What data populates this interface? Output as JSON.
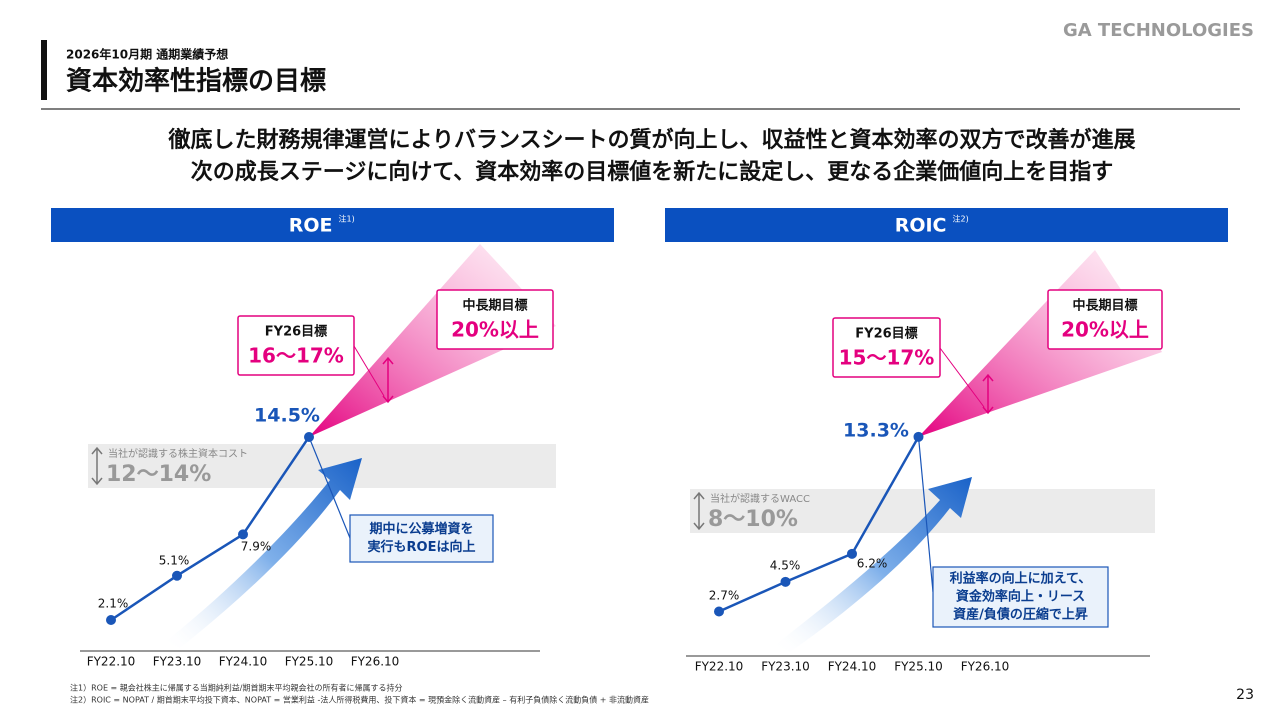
{
  "header": {
    "subtitle": "2026年10月期 通期業績予想",
    "title": "資本効率性指標の目標",
    "logo": "GA TECHNOLOGIES"
  },
  "headline": [
    "徹底した財務規律運営によりバランスシートの質が向上し、収益性と資本効率の双方で改善が進展",
    "次の成長ステージに向けて、資本効率の目標値を新たに設定し、更なる企業価値向上を目指す"
  ],
  "chart_data": [
    {
      "type": "line",
      "title": "ROE",
      "title_note": "注1)",
      "categories": [
        "FY22.10",
        "FY23.10",
        "FY24.10",
        "FY25.10",
        "FY26.10"
      ],
      "values": [
        2.1,
        5.1,
        7.9,
        14.5,
        null
      ],
      "value_labels": [
        "2.1%",
        "5.1%",
        "7.9%",
        "14.5%",
        null
      ],
      "color": "#1a56b8",
      "ylim": [
        0,
        25
      ],
      "annotations": {
        "fy26_label": "FY26目標",
        "fy26_value": "16〜17%",
        "mid_label": "中長期目標",
        "mid_value": "20%以上",
        "cost_label": "当社が認識する株主資本コスト",
        "cost_value": "12〜14%",
        "callout": [
          "期中に公募増資を",
          "実行もROEは向上"
        ]
      }
    },
    {
      "type": "line",
      "title": "ROIC",
      "title_note": "注2)",
      "categories": [
        "FY22.10",
        "FY23.10",
        "FY24.10",
        "FY25.10",
        "FY26.10"
      ],
      "values": [
        2.7,
        4.5,
        6.2,
        13.3,
        null
      ],
      "value_labels": [
        "2.7%",
        "4.5%",
        "6.2%",
        "13.3%",
        null
      ],
      "color": "#1a56b8",
      "ylim": [
        0,
        25
      ],
      "annotations": {
        "fy26_label": "FY26目標",
        "fy26_value": "15〜17%",
        "mid_label": "中長期目標",
        "mid_value": "20%以上",
        "cost_label": "当社が認識するWACC",
        "cost_value": "8〜10%",
        "callout": [
          "利益率の向上に加えて、",
          "資金効率向上・リース",
          "資産/負債の圧縮で上昇"
        ]
      }
    }
  ],
  "footnotes": [
    "注1）ROE = 親会社株主に帰属する当期純利益/期首期末平均親会社の所有者に帰属する持分",
    "注2）ROIC = NOPAT / 期首期末平均投下資本、NOPAT = 営業利益 -法人所得税費用、投下資本 = 現預金除く流動資産 – 有利子負債除く流動負債 + 非流動資産"
  ],
  "page_number": "23"
}
